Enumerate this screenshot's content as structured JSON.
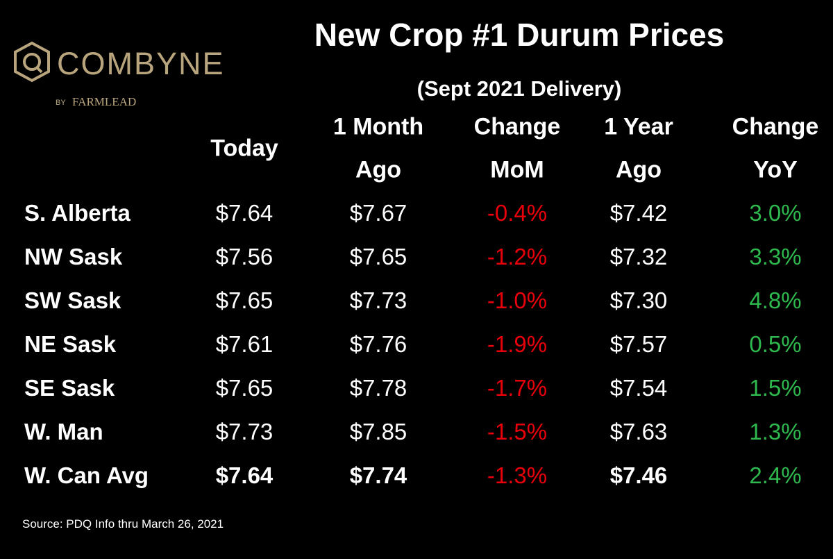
{
  "logo": {
    "name": "COMBYNE",
    "by": "BY",
    "brand": "FARMLEAD"
  },
  "header": {
    "title": "New Crop #1 Durum Prices",
    "subtitle": "(Sept 2021 Delivery)"
  },
  "table": {
    "columns": [
      [
        "Today"
      ],
      [
        "1 Month",
        "Ago"
      ],
      [
        "Change",
        "MoM"
      ],
      [
        "1 Year",
        "Ago"
      ],
      [
        "Change",
        "YoY"
      ]
    ],
    "rows": [
      [
        "S. Alberta",
        "$7.64",
        "$7.67",
        "-0.4%",
        "$7.42",
        "3.0%"
      ],
      [
        "NW Sask",
        "$7.56",
        "$7.65",
        "-1.2%",
        "$7.32",
        "3.3%"
      ],
      [
        "SW Sask",
        "$7.65",
        "$7.73",
        "-1.0%",
        "$7.30",
        "4.8%"
      ],
      [
        "NE Sask",
        "$7.61",
        "$7.76",
        "-1.9%",
        "$7.57",
        "0.5%"
      ],
      [
        "SE Sask",
        "$7.65",
        "$7.78",
        "-1.7%",
        "$7.54",
        "1.5%"
      ],
      [
        "W. Man",
        "$7.73",
        "$7.85",
        "-1.5%",
        "$7.63",
        "1.3%"
      ],
      [
        "W. Can Avg",
        "$7.64",
        "$7.74",
        "-1.3%",
        "$7.46",
        "2.4%"
      ]
    ]
  },
  "source": "Source: PDQ Info thru March 26, 2021"
}
